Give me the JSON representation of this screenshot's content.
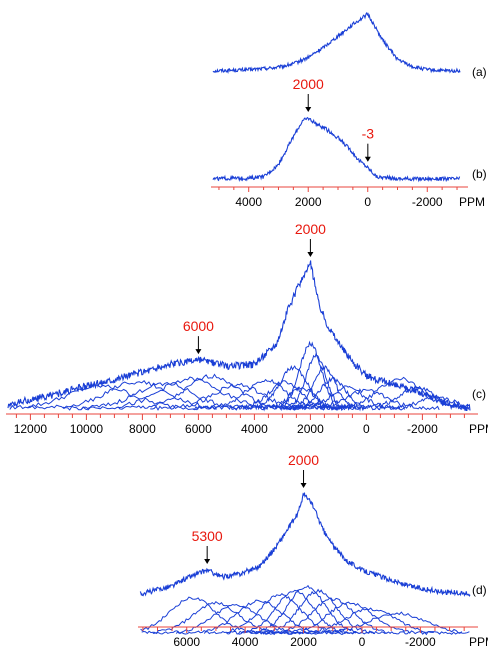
{
  "colors": {
    "spectrum": "#1a3fd6",
    "axis": "#e8453c",
    "annotation": "#e8180e",
    "arrow": "#000000"
  },
  "chart_data": [
    {
      "type": "line",
      "panel": "(a)",
      "xlabel": "PPM",
      "x_reversed": true,
      "x_range": [
        5200,
        -3100
      ],
      "series": [
        {
          "x": [
            5200,
            4000,
            3000,
            2500,
            2000,
            1500,
            1000,
            500,
            0,
            -500,
            -1000,
            -1500,
            -2000,
            -2500,
            -3100
          ],
          "y": [
            0.02,
            0.04,
            0.08,
            0.14,
            0.25,
            0.42,
            0.62,
            0.82,
            1.0,
            0.55,
            0.22,
            0.09,
            0.04,
            0.02,
            0.02
          ]
        }
      ],
      "annotations": []
    },
    {
      "type": "line",
      "panel": "(b)",
      "xlabel": "PPM",
      "x_reversed": true,
      "x_range": [
        5200,
        -3100
      ],
      "x_ticks": [
        "4000",
        "2000",
        "0",
        "-2000"
      ],
      "series": [
        {
          "x": [
            5200,
            4000,
            3500,
            3000,
            2500,
            2200,
            2000,
            1700,
            1400,
            1000,
            600,
            300,
            0,
            -300,
            -1000,
            -2000,
            -3100
          ],
          "y": [
            0.02,
            0.03,
            0.05,
            0.25,
            0.7,
            0.95,
            1.0,
            0.9,
            0.82,
            0.68,
            0.5,
            0.32,
            0.2,
            0.05,
            0.02,
            0.02,
            0.02
          ]
        }
      ],
      "annotations": [
        {
          "text": "2000",
          "x": 2000
        },
        {
          "text": "-3",
          "x": -3
        }
      ]
    },
    {
      "type": "line",
      "panel": "(c)",
      "xlabel": "PPM",
      "x_reversed": true,
      "x_range": [
        12800,
        -3700
      ],
      "x_ticks": [
        "12000",
        "10000",
        "8000",
        "6000",
        "4000",
        "2000",
        "0",
        "-2000"
      ],
      "series": [
        {
          "name": "sum",
          "x": [
            12800,
            11000,
            9000,
            7000,
            6000,
            5000,
            4000,
            3200,
            2800,
            2400,
            2000,
            1700,
            1400,
            1000,
            500,
            0,
            -1000,
            -2000,
            -3000,
            -3700
          ],
          "y": [
            0.02,
            0.1,
            0.2,
            0.3,
            0.33,
            0.29,
            0.3,
            0.45,
            0.68,
            0.85,
            1.0,
            0.72,
            0.58,
            0.45,
            0.32,
            0.22,
            0.16,
            0.1,
            0.02,
            0.0
          ]
        }
      ],
      "components": [
        {
          "center": 9500,
          "width": 1600,
          "height": 0.15
        },
        {
          "center": 8200,
          "width": 1500,
          "height": 0.18
        },
        {
          "center": 7200,
          "width": 1400,
          "height": 0.17
        },
        {
          "center": 6300,
          "width": 1500,
          "height": 0.2
        },
        {
          "center": 5500,
          "width": 1300,
          "height": 0.22
        },
        {
          "center": 4600,
          "width": 1200,
          "height": 0.16
        },
        {
          "center": 3600,
          "width": 1000,
          "height": 0.19
        },
        {
          "center": 2900,
          "width": 800,
          "height": 0.18
        },
        {
          "center": 2600,
          "width": 700,
          "height": 0.28
        },
        {
          "center": 2300,
          "width": 600,
          "height": 0.14
        },
        {
          "center": 2000,
          "width": 550,
          "height": 0.44
        },
        {
          "center": 1800,
          "width": 500,
          "height": 0.36
        },
        {
          "center": 1500,
          "width": 550,
          "height": 0.28
        },
        {
          "center": 1200,
          "width": 650,
          "height": 0.2
        },
        {
          "center": 700,
          "width": 800,
          "height": 0.14
        },
        {
          "center": 0,
          "width": 1000,
          "height": 0.12
        },
        {
          "center": -1200,
          "width": 1100,
          "height": 0.2
        },
        {
          "center": -1800,
          "width": 900,
          "height": 0.14
        },
        {
          "center": -2500,
          "width": 800,
          "height": 0.08
        }
      ],
      "annotations": [
        {
          "text": "6000",
          "x": 6000
        },
        {
          "text": "2000",
          "x": 2000
        }
      ]
    },
    {
      "type": "line",
      "panel": "(d)",
      "xlabel": "PPM",
      "x_reversed": true,
      "x_range": [
        7600,
        -3700
      ],
      "x_ticks": [
        "6000",
        "4000",
        "2000",
        "0",
        "-2000"
      ],
      "series": [
        {
          "name": "sum",
          "x": [
            7600,
            6500,
            6000,
            5300,
            4800,
            4200,
            3500,
            3000,
            2600,
            2200,
            2000,
            1700,
            1300,
            900,
            500,
            0,
            -800,
            -1600,
            -2500,
            -3700
          ],
          "y": [
            0.0,
            0.08,
            0.16,
            0.24,
            0.17,
            0.2,
            0.28,
            0.45,
            0.62,
            0.8,
            1.0,
            0.9,
            0.62,
            0.45,
            0.33,
            0.24,
            0.16,
            0.08,
            0.03,
            0.0
          ]
        }
      ],
      "components": [
        {
          "center": 5800,
          "width": 1100,
          "height": 0.35
        },
        {
          "center": 5000,
          "width": 1100,
          "height": 0.3
        },
        {
          "center": 4300,
          "width": 1100,
          "height": 0.28
        },
        {
          "center": 3500,
          "width": 1100,
          "height": 0.32
        },
        {
          "center": 2800,
          "width": 1000,
          "height": 0.38
        },
        {
          "center": 2300,
          "width": 900,
          "height": 0.42
        },
        {
          "center": 1900,
          "width": 900,
          "height": 0.46
        },
        {
          "center": 1500,
          "width": 900,
          "height": 0.42
        },
        {
          "center": 1000,
          "width": 1000,
          "height": 0.34
        },
        {
          "center": 400,
          "width": 1100,
          "height": 0.3
        },
        {
          "center": -300,
          "width": 1200,
          "height": 0.24
        },
        {
          "center": -1200,
          "width": 1300,
          "height": 0.2
        }
      ],
      "annotations": [
        {
          "text": "5300",
          "x": 5300
        },
        {
          "text": "2000",
          "x": 2000
        }
      ]
    }
  ]
}
